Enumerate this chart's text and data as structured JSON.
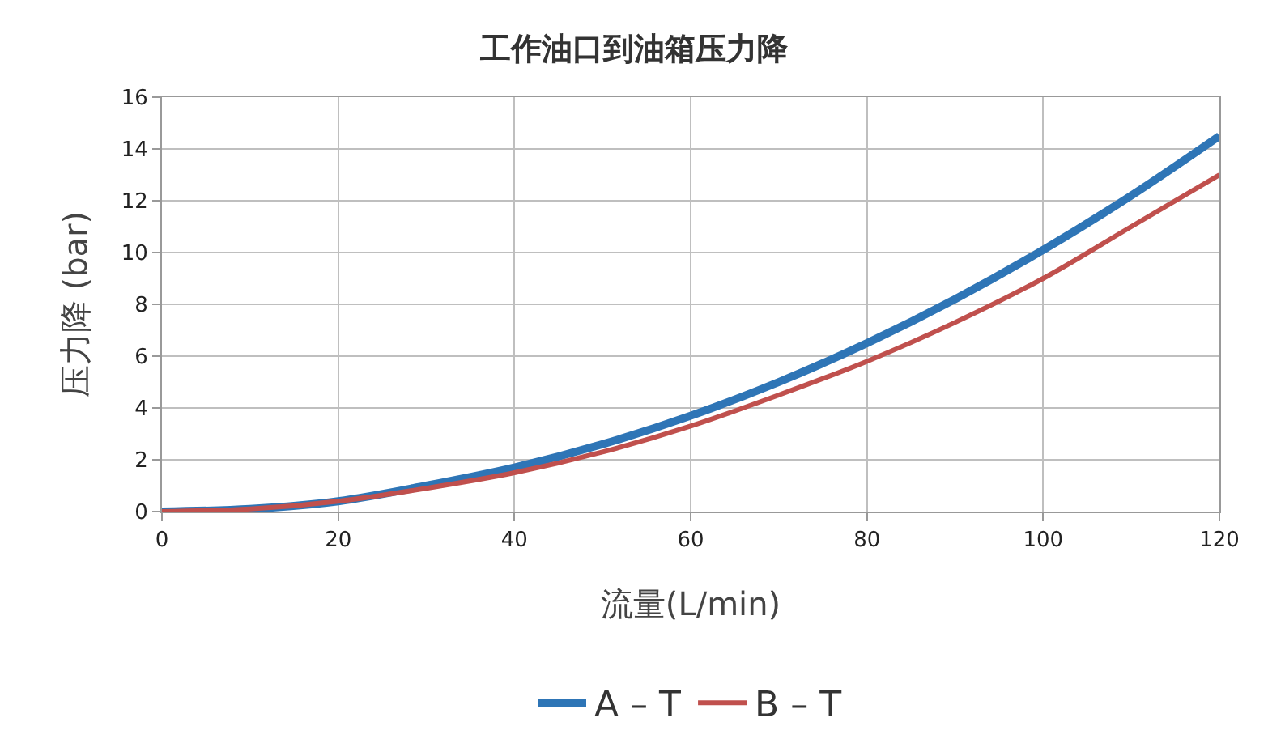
{
  "chart_data": {
    "type": "line",
    "title": "工作油口到油箱压力降",
    "xlabel": "流量(L/min)",
    "ylabel": "压力降 (bar)",
    "x": [
      0,
      10,
      20,
      30,
      40,
      50,
      60,
      70,
      80,
      90,
      100,
      110,
      120
    ],
    "series": [
      {
        "name": "A – T",
        "color": "#2e75b6",
        "values": [
          0,
          0.1,
          0.4,
          1.0,
          1.7,
          2.6,
          3.7,
          5.0,
          6.5,
          8.2,
          10.1,
          12.2,
          14.5
        ]
      },
      {
        "name": "B – T",
        "color": "#c0504d",
        "values": [
          0,
          0.1,
          0.4,
          0.9,
          1.5,
          2.3,
          3.3,
          4.5,
          5.8,
          7.3,
          9.0,
          11.0,
          13.0
        ]
      }
    ],
    "xlim": [
      0,
      120
    ],
    "xticks": [
      0,
      20,
      40,
      60,
      80,
      100,
      120
    ],
    "ylim": [
      0,
      16
    ],
    "yticks": [
      0,
      2,
      4,
      6,
      8,
      10,
      12,
      14,
      16
    ],
    "grid": true,
    "legend": "bottom",
    "marker": "none",
    "line_style": "solid"
  }
}
